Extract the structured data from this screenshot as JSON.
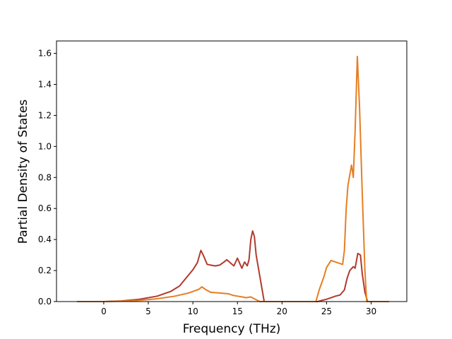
{
  "chart_data": {
    "type": "line",
    "title": "",
    "xlabel": "Frequency (THz)",
    "ylabel": "Partial Density of States",
    "xlim": [
      -5.3,
      34.0
    ],
    "ylim": [
      0.0,
      1.68
    ],
    "xticks": [
      0,
      5,
      10,
      15,
      20,
      25,
      30
    ],
    "yticks": [
      0.0,
      0.2,
      0.4,
      0.6,
      0.8,
      1.0,
      1.2,
      1.4,
      1.6
    ],
    "grid": false,
    "legend": "none",
    "series": [
      {
        "color": "#b03a2e",
        "points": [
          [
            -3.0,
            0.0
          ],
          [
            0.0,
            0.0
          ],
          [
            2.0,
            0.004
          ],
          [
            4.0,
            0.015
          ],
          [
            6.0,
            0.035
          ],
          [
            7.5,
            0.065
          ],
          [
            8.5,
            0.1
          ],
          [
            9.5,
            0.17
          ],
          [
            10.0,
            0.205
          ],
          [
            10.5,
            0.25
          ],
          [
            10.9,
            0.33
          ],
          [
            11.2,
            0.295
          ],
          [
            11.6,
            0.24
          ],
          [
            12.0,
            0.235
          ],
          [
            12.5,
            0.23
          ],
          [
            13.0,
            0.235
          ],
          [
            13.5,
            0.255
          ],
          [
            13.8,
            0.27
          ],
          [
            14.2,
            0.25
          ],
          [
            14.6,
            0.23
          ],
          [
            15.0,
            0.28
          ],
          [
            15.3,
            0.24
          ],
          [
            15.5,
            0.215
          ],
          [
            15.8,
            0.255
          ],
          [
            16.1,
            0.23
          ],
          [
            16.3,
            0.27
          ],
          [
            16.5,
            0.4
          ],
          [
            16.7,
            0.455
          ],
          [
            16.9,
            0.42
          ],
          [
            17.1,
            0.3
          ],
          [
            17.4,
            0.2
          ],
          [
            17.7,
            0.1
          ],
          [
            18.0,
            0.0
          ],
          [
            20.0,
            0.0
          ],
          [
            24.0,
            0.0
          ],
          [
            24.5,
            0.008
          ],
          [
            25.0,
            0.015
          ],
          [
            25.5,
            0.025
          ],
          [
            26.0,
            0.035
          ],
          [
            26.5,
            0.042
          ],
          [
            27.0,
            0.075
          ],
          [
            27.3,
            0.15
          ],
          [
            27.6,
            0.2
          ],
          [
            28.0,
            0.225
          ],
          [
            28.2,
            0.215
          ],
          [
            28.5,
            0.31
          ],
          [
            28.8,
            0.3
          ],
          [
            29.0,
            0.18
          ],
          [
            29.3,
            0.06
          ],
          [
            29.6,
            0.0
          ],
          [
            32.0,
            0.0
          ]
        ]
      },
      {
        "color": "#e67e22",
        "points": [
          [
            -3.0,
            0.0
          ],
          [
            0.0,
            0.0
          ],
          [
            2.0,
            0.002
          ],
          [
            4.0,
            0.008
          ],
          [
            6.0,
            0.018
          ],
          [
            8.0,
            0.035
          ],
          [
            9.5,
            0.055
          ],
          [
            10.0,
            0.065
          ],
          [
            10.7,
            0.08
          ],
          [
            11.0,
            0.095
          ],
          [
            11.5,
            0.075
          ],
          [
            12.0,
            0.06
          ],
          [
            13.0,
            0.055
          ],
          [
            14.0,
            0.05
          ],
          [
            14.5,
            0.04
          ],
          [
            15.0,
            0.035
          ],
          [
            15.5,
            0.03
          ],
          [
            16.0,
            0.025
          ],
          [
            16.5,
            0.03
          ],
          [
            17.0,
            0.015
          ],
          [
            17.5,
            0.0
          ],
          [
            20.0,
            0.0
          ],
          [
            23.8,
            0.0
          ],
          [
            24.2,
            0.08
          ],
          [
            24.7,
            0.16
          ],
          [
            25.0,
            0.22
          ],
          [
            25.5,
            0.265
          ],
          [
            26.0,
            0.255
          ],
          [
            26.5,
            0.245
          ],
          [
            26.8,
            0.24
          ],
          [
            27.0,
            0.33
          ],
          [
            27.2,
            0.6
          ],
          [
            27.4,
            0.75
          ],
          [
            27.8,
            0.88
          ],
          [
            28.0,
            0.8
          ],
          [
            28.2,
            1.1
          ],
          [
            28.45,
            1.58
          ],
          [
            28.7,
            1.25
          ],
          [
            29.0,
            0.7
          ],
          [
            29.3,
            0.2
          ],
          [
            29.5,
            0.0
          ],
          [
            32.0,
            0.0
          ]
        ]
      }
    ]
  }
}
